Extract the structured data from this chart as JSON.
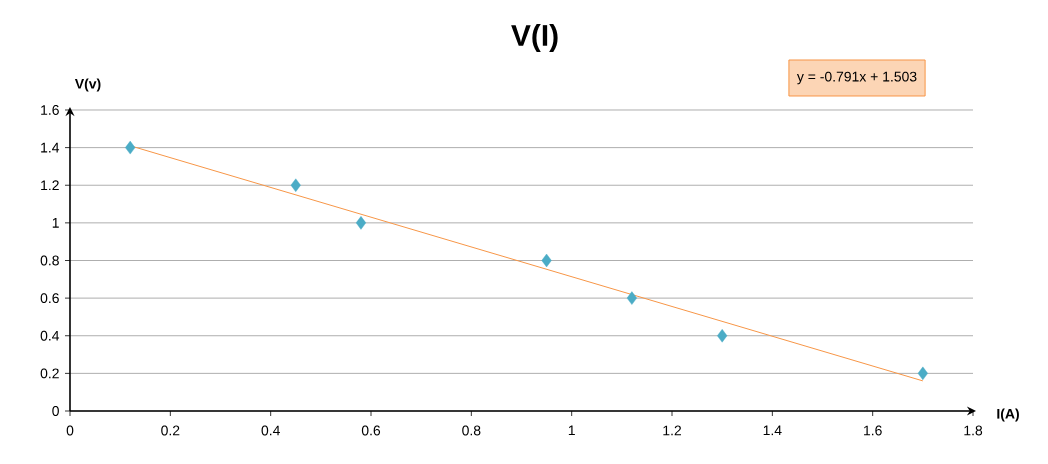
{
  "chart_data": {
    "type": "scatter",
    "title": "V(I)",
    "xlabel": "I(A)",
    "ylabel": "V(v)",
    "annotations": [
      "y = -0.791x + 1.503"
    ],
    "xlim": [
      0,
      1.8
    ],
    "xticks": [
      0,
      0.2,
      0.4,
      0.6,
      0.8,
      1,
      1.2,
      1.4,
      1.6,
      1.8
    ],
    "ylim": [
      0,
      1.6
    ],
    "yticks": [
      0,
      0.2,
      0.4,
      0.6,
      0.8,
      1,
      1.2,
      1.4,
      1.6
    ],
    "grid": "y",
    "series": [
      {
        "marker": "diamond",
        "color": "#4bacc6",
        "x": [
          0.12,
          0.45,
          0.58,
          0.95,
          1.12,
          1.3,
          1.7
        ],
        "values": [
          1.4,
          1.2,
          1,
          0.8,
          0.6,
          0.4,
          0.2
        ]
      },
      {
        "type": "line",
        "marker": "none",
        "color": "#f79646",
        "x": [
          0.12,
          1.7
        ],
        "values": [
          1.41,
          0.16
        ]
      }
    ]
  }
}
